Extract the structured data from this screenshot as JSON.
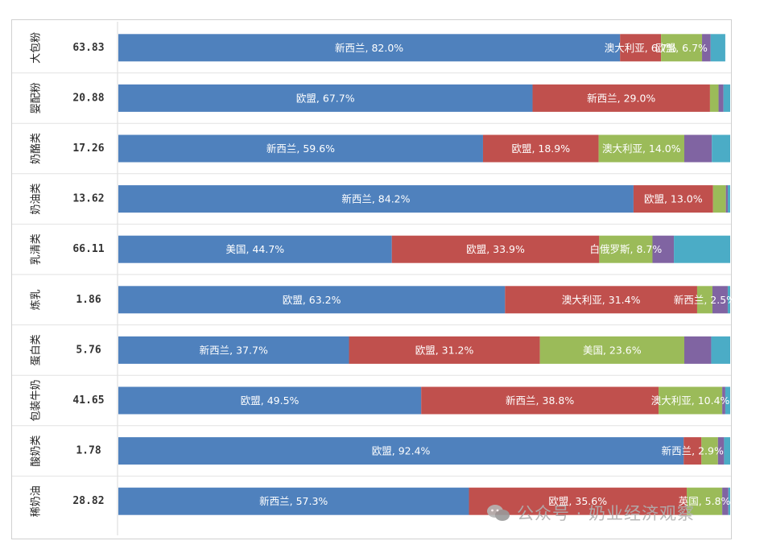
{
  "chart_data": {
    "type": "bar",
    "stacked": true,
    "orientation": "horizontal",
    "categories": [
      "大包粉",
      "婴配粉",
      "奶酪类",
      "奶油类",
      "乳清类",
      "炼乳",
      "蛋白类",
      "包装牛奶",
      "酸奶类",
      "稀奶油"
    ],
    "totals": [
      "63.83",
      "20.88",
      "17.26",
      "13.62",
      "66.11",
      "1.86",
      "5.76",
      "41.65",
      "1.78",
      "28.82"
    ],
    "rows": [
      [
        {
          "label": "新西兰",
          "value": 82.0,
          "color": "#4f81bd",
          "text": "新西兰, 82.0%"
        },
        {
          "label": "澳大利亚",
          "value": 6.7,
          "color": "#c0504d",
          "text": "澳大利亚, 6.7%"
        },
        {
          "label": "欧盟",
          "value": 6.7,
          "color": "#9bbb59",
          "text": "欧盟, 6.7%"
        },
        {
          "label": "",
          "value": 1.4,
          "color": "#8064a2",
          "text": ""
        },
        {
          "label": "",
          "value": 2.4,
          "color": "#4bacc6",
          "text": ""
        }
      ],
      [
        {
          "label": "欧盟",
          "value": 67.7,
          "color": "#4f81bd",
          "text": "欧盟, 67.7%"
        },
        {
          "label": "新西兰",
          "value": 29.0,
          "color": "#c0504d",
          "text": "新西兰, 29.0%"
        },
        {
          "label": "",
          "value": 1.4,
          "color": "#9bbb59",
          "text": ""
        },
        {
          "label": "",
          "value": 0.8,
          "color": "#8064a2",
          "text": ""
        },
        {
          "label": "",
          "value": 1.1,
          "color": "#4bacc6",
          "text": ""
        }
      ],
      [
        {
          "label": "新西兰",
          "value": 59.6,
          "color": "#4f81bd",
          "text": "新西兰, 59.6%"
        },
        {
          "label": "欧盟",
          "value": 18.9,
          "color": "#c0504d",
          "text": "欧盟, 18.9%"
        },
        {
          "label": "澳大利亚",
          "value": 14.0,
          "color": "#9bbb59",
          "text": "澳大利亚, 14.0%"
        },
        {
          "label": "",
          "value": 4.5,
          "color": "#8064a2",
          "text": ""
        },
        {
          "label": "",
          "value": 3.0,
          "color": "#4bacc6",
          "text": ""
        }
      ],
      [
        {
          "label": "新西兰",
          "value": 84.2,
          "color": "#4f81bd",
          "text": "新西兰, 84.2%"
        },
        {
          "label": "欧盟",
          "value": 13.0,
          "color": "#c0504d",
          "text": "欧盟, 13.0%"
        },
        {
          "label": "",
          "value": 2.1,
          "color": "#9bbb59",
          "text": ""
        },
        {
          "label": "",
          "value": 0.3,
          "color": "#8064a2",
          "text": ""
        },
        {
          "label": "",
          "value": 0.4,
          "color": "#4bacc6",
          "text": ""
        }
      ],
      [
        {
          "label": "美国",
          "value": 44.7,
          "color": "#4f81bd",
          "text": "美国, 44.7%"
        },
        {
          "label": "欧盟",
          "value": 33.9,
          "color": "#c0504d",
          "text": "欧盟, 33.9%"
        },
        {
          "label": "白俄罗斯",
          "value": 8.7,
          "color": "#9bbb59",
          "text": "白俄罗斯, 8.7%"
        },
        {
          "label": "",
          "value": 3.5,
          "color": "#8064a2",
          "text": ""
        },
        {
          "label": "",
          "value": 9.2,
          "color": "#4bacc6",
          "text": ""
        }
      ],
      [
        {
          "label": "欧盟",
          "value": 63.2,
          "color": "#4f81bd",
          "text": "欧盟, 63.2%"
        },
        {
          "label": "澳大利亚",
          "value": 31.4,
          "color": "#c0504d",
          "text": "澳大利亚, 31.4%"
        },
        {
          "label": "新西兰",
          "value": 2.5,
          "color": "#9bbb59",
          "text": "新西兰, 2.5%"
        },
        {
          "label": "",
          "value": 2.5,
          "color": "#8064a2",
          "text": ""
        },
        {
          "label": "",
          "value": 0.4,
          "color": "#4bacc6",
          "text": ""
        }
      ],
      [
        {
          "label": "新西兰",
          "value": 37.7,
          "color": "#4f81bd",
          "text": "新西兰, 37.7%"
        },
        {
          "label": "欧盟",
          "value": 31.2,
          "color": "#c0504d",
          "text": "欧盟, 31.2%"
        },
        {
          "label": "美国",
          "value": 23.6,
          "color": "#9bbb59",
          "text": "美国, 23.6%"
        },
        {
          "label": "",
          "value": 4.4,
          "color": "#8064a2",
          "text": ""
        },
        {
          "label": "",
          "value": 3.1,
          "color": "#4bacc6",
          "text": ""
        }
      ],
      [
        {
          "label": "欧盟",
          "value": 49.5,
          "color": "#4f81bd",
          "text": "欧盟, 49.5%"
        },
        {
          "label": "新西兰",
          "value": 38.8,
          "color": "#c0504d",
          "text": "新西兰, 38.8%"
        },
        {
          "label": "澳大利亚",
          "value": 10.4,
          "color": "#9bbb59",
          "text": "澳大利亚, 10.4%"
        },
        {
          "label": "",
          "value": 0.5,
          "color": "#8064a2",
          "text": ""
        },
        {
          "label": "",
          "value": 0.8,
          "color": "#4bacc6",
          "text": ""
        }
      ],
      [
        {
          "label": "欧盟",
          "value": 92.4,
          "color": "#4f81bd",
          "text": "欧盟, 92.4%"
        },
        {
          "label": "新西兰",
          "value": 2.9,
          "color": "#c0504d",
          "text": "新西兰, 2.9%"
        },
        {
          "label": "",
          "value": 2.7,
          "color": "#9bbb59",
          "text": ""
        },
        {
          "label": "",
          "value": 1.0,
          "color": "#8064a2",
          "text": ""
        },
        {
          "label": "",
          "value": 1.0,
          "color": "#4bacc6",
          "text": ""
        }
      ],
      [
        {
          "label": "新西兰",
          "value": 57.3,
          "color": "#4f81bd",
          "text": "新西兰, 57.3%"
        },
        {
          "label": "欧盟",
          "value": 35.6,
          "color": "#c0504d",
          "text": "欧盟, 35.6%"
        },
        {
          "label": "英国",
          "value": 5.8,
          "color": "#9bbb59",
          "text": "英国, 5.8%"
        },
        {
          "label": "",
          "value": 1.0,
          "color": "#8064a2",
          "text": ""
        },
        {
          "label": "",
          "value": 0.3,
          "color": "#4bacc6",
          "text": ""
        }
      ]
    ],
    "xlim": [
      0,
      100
    ],
    "grid": false,
    "legend": "none"
  },
  "watermark": "公众号 · 奶业经济观察"
}
